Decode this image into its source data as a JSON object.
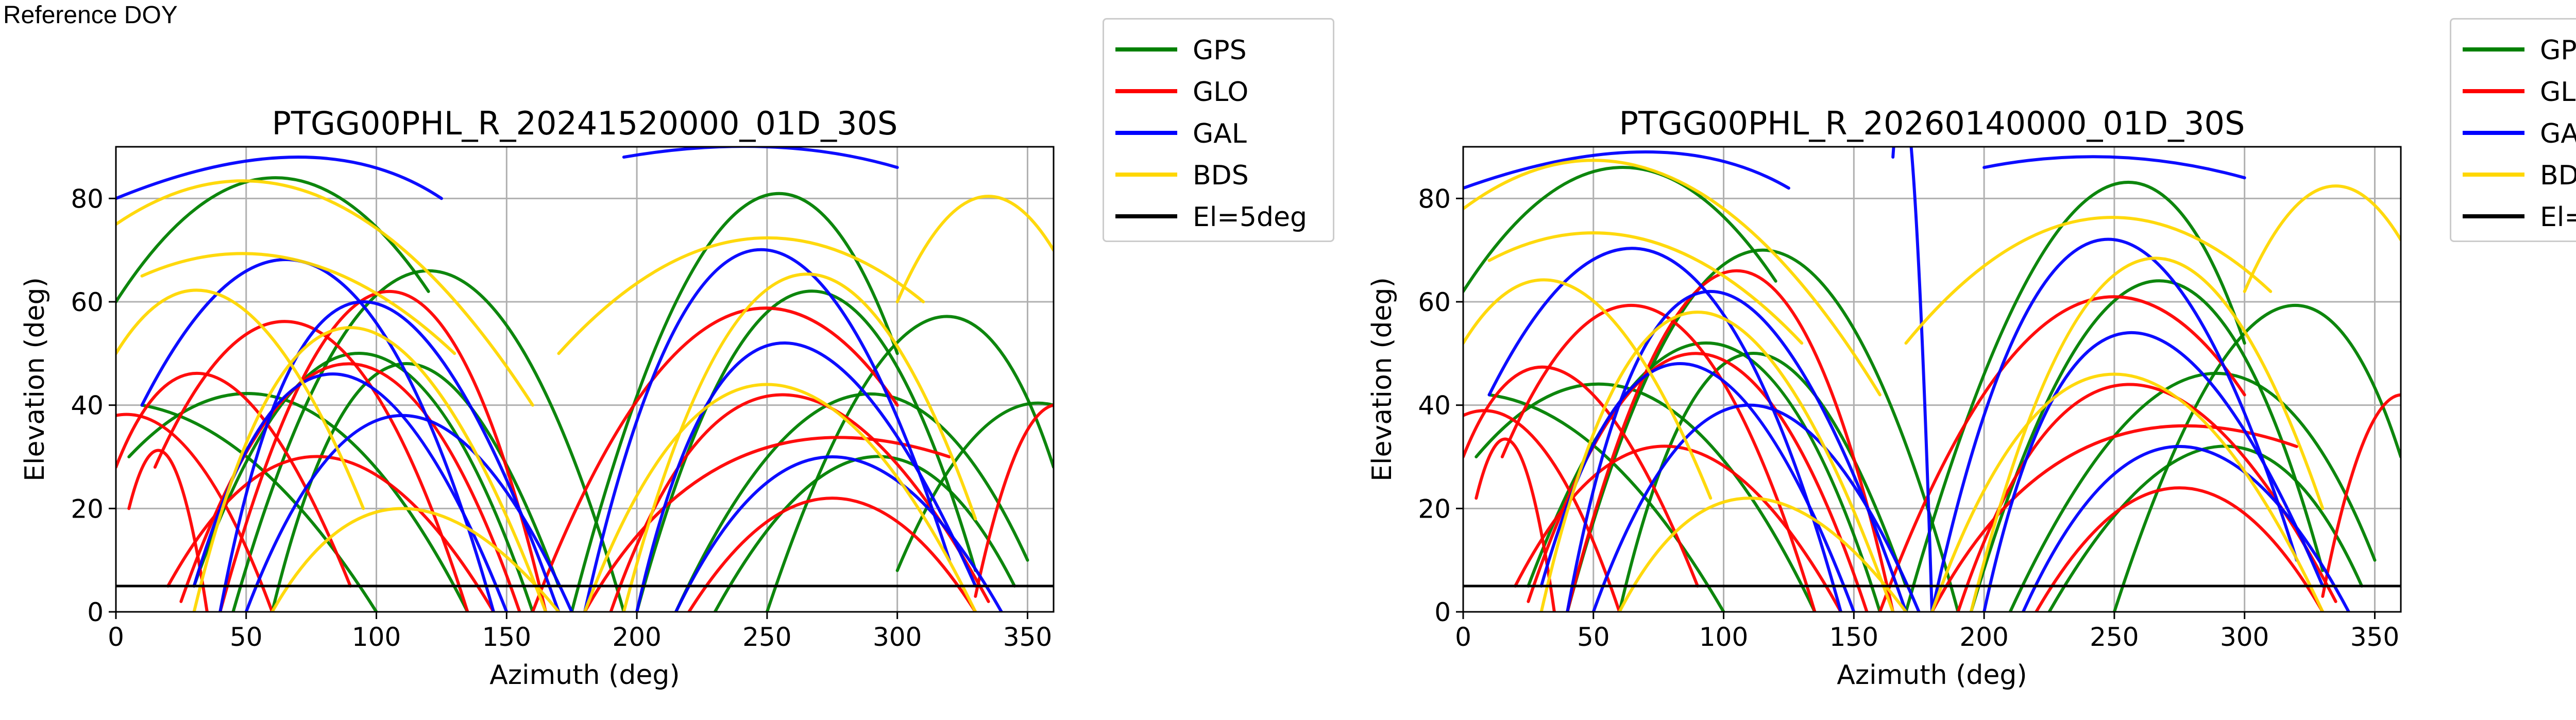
{
  "header": {
    "reference_label": "Reference DOY"
  },
  "legend": [
    {
      "label": "GPS",
      "color": "#008000"
    },
    {
      "label": "GLO",
      "color": "#ff0000"
    },
    {
      "label": "GAL",
      "color": "#0000ff"
    },
    {
      "label": "BDS",
      "color": "#ffd700"
    },
    {
      "label": "El=5deg",
      "color": "#000000"
    }
  ],
  "chart_data": [
    {
      "type": "scatter",
      "title": "PTGG00PHL_R_20241520000_01D_30S",
      "xlabel": "Azimuth (deg)",
      "ylabel": "Elevation (deg)",
      "xlim": [
        0,
        360
      ],
      "ylim": [
        0,
        90
      ],
      "xticks": [
        0,
        50,
        100,
        150,
        200,
        250,
        300,
        350
      ],
      "yticks": [
        0,
        20,
        40,
        60,
        80
      ],
      "grid": true,
      "legend_position": "outside-right",
      "cutoff_line": {
        "label": "El=5deg",
        "y": 5
      },
      "series": [
        {
          "name": "GPS",
          "color": "#008000",
          "arcs": [
            [
              45,
              0,
              120,
              66,
              195,
              0
            ],
            [
              30,
              5,
              95,
              50,
              160,
              0
            ],
            [
              200,
              0,
              265,
              62,
              330,
              8
            ],
            [
              215,
              0,
              285,
              42,
              350,
              10
            ],
            [
              0,
              60,
              60,
              84,
              120,
              62
            ],
            [
              5,
              30,
              70,
              40,
              135,
              0
            ],
            [
              175,
              0,
              240,
              78,
              300,
              50
            ],
            [
              230,
              0,
              290,
              30,
              345,
              5
            ],
            [
              10,
              40,
              55,
              28,
              100,
              0
            ],
            [
              250,
              0,
              310,
              56,
              360,
              28
            ],
            [
              60,
              0,
              110,
              48,
              170,
              5
            ],
            [
              300,
              8,
              330,
              34,
              360,
              40
            ]
          ]
        },
        {
          "name": "GLO",
          "color": "#ff0000",
          "arcs": [
            [
              25,
              2,
              90,
              48,
              155,
              0
            ],
            [
              15,
              28,
              75,
              55,
              135,
              0
            ],
            [
              160,
              0,
              230,
              56,
              300,
              40
            ],
            [
              20,
              5,
              80,
              30,
              145,
              0
            ],
            [
              190,
              0,
              255,
              42,
              335,
              2
            ],
            [
              40,
              0,
              105,
              62,
              165,
              0
            ],
            [
              0,
              28,
              40,
              45,
              90,
              5
            ],
            [
              220,
              0,
              275,
              22,
              330,
              0
            ],
            [
              180,
              0,
              240,
              30,
              320,
              30
            ],
            [
              0,
              38,
              30,
              30,
              60,
              0
            ],
            [
              330,
              3,
              345,
              30,
              360,
              40
            ],
            [
              5,
              20,
              20,
              30,
              35,
              0
            ]
          ]
        },
        {
          "name": "GAL",
          "color": "#0000ff",
          "arcs": [
            [
              40,
              0,
              95,
              60,
              170,
              0
            ],
            [
              200,
              0,
              255,
              52,
              330,
              5
            ],
            [
              10,
              40,
              80,
              66,
              145,
              0
            ],
            [
              180,
              0,
              245,
              70,
              320,
              10
            ],
            [
              50,
              0,
              110,
              38,
              175,
              0
            ],
            [
              215,
              0,
              275,
              30,
              340,
              0
            ],
            [
              0,
              80,
              70,
              88,
              125,
              80
            ],
            [
              195,
              88,
              250,
              90,
              300,
              86
            ],
            [
              30,
              5,
              85,
              46,
              150,
              0
            ]
          ]
        },
        {
          "name": "BDS",
          "color": "#ffd700",
          "arcs": [
            [
              0,
              75,
              80,
              80,
              160,
              40
            ],
            [
              170,
              50,
              240,
              72,
              310,
              60
            ],
            [
              30,
              0,
              90,
              55,
              165,
              0
            ],
            [
              195,
              0,
              260,
              65,
              330,
              18
            ],
            [
              10,
              65,
              70,
              68,
              130,
              50
            ],
            [
              180,
              0,
              250,
              44,
              330,
              0
            ],
            [
              60,
              0,
              110,
              20,
              170,
              0
            ],
            [
              300,
              60,
              330,
              80,
              360,
              70
            ],
            [
              0,
              50,
              45,
              60,
              95,
              20
            ]
          ]
        }
      ]
    },
    {
      "type": "scatter",
      "title": "PTGG00PHL_R_20260140000_01D_30S",
      "xlabel": "Azimuth (deg)",
      "ylabel": "Elevation (deg)",
      "xlim": [
        0,
        360
      ],
      "ylim": [
        0,
        90
      ],
      "xticks": [
        0,
        50,
        100,
        150,
        200,
        250,
        300,
        350
      ],
      "yticks": [
        0,
        20,
        40,
        60,
        80
      ],
      "grid": true,
      "legend_position": "outside-right",
      "cutoff_line": {
        "label": "El=5deg",
        "y": 5
      },
      "series": [
        {
          "name": "GPS",
          "color": "#008000",
          "arcs": [
            [
              40,
              0,
              115,
              70,
              190,
              0
            ],
            [
              25,
              5,
              95,
              52,
              160,
              0
            ],
            [
              195,
              0,
              265,
              64,
              330,
              8
            ],
            [
              210,
              0,
              285,
              46,
              350,
              10
            ],
            [
              0,
              62,
              60,
              86,
              120,
              64
            ],
            [
              5,
              30,
              70,
              42,
              135,
              0
            ],
            [
              170,
              0,
              240,
              80,
              300,
              52
            ],
            [
              225,
              0,
              290,
              32,
              345,
              5
            ],
            [
              10,
              42,
              55,
              30,
              100,
              0
            ],
            [
              250,
              0,
              310,
              58,
              360,
              30
            ],
            [
              60,
              0,
              110,
              50,
              170,
              5
            ]
          ]
        },
        {
          "name": "GLO",
          "color": "#ff0000",
          "arcs": [
            [
              25,
              2,
              90,
              50,
              155,
              0
            ],
            [
              15,
              30,
              75,
              58,
              135,
              0
            ],
            [
              160,
              0,
              230,
              58,
              300,
              42
            ],
            [
              20,
              5,
              80,
              32,
              145,
              0
            ],
            [
              190,
              0,
              255,
              44,
              335,
              2
            ],
            [
              40,
              0,
              105,
              66,
              165,
              0
            ],
            [
              0,
              30,
              40,
              46,
              90,
              5
            ],
            [
              220,
              0,
              275,
              24,
              330,
              0
            ],
            [
              180,
              0,
              240,
              32,
              320,
              32
            ],
            [
              0,
              38,
              30,
              32,
              60,
              0
            ],
            [
              330,
              3,
              345,
              32,
              360,
              42
            ],
            [
              5,
              22,
              20,
              32,
              35,
              0
            ]
          ]
        },
        {
          "name": "GAL",
          "color": "#0000ff",
          "arcs": [
            [
              40,
              0,
              95,
              62,
              170,
              0
            ],
            [
              200,
              0,
              255,
              54,
              330,
              5
            ],
            [
              10,
              42,
              80,
              68,
              145,
              0
            ],
            [
              180,
              0,
              245,
              72,
              320,
              10
            ],
            [
              50,
              0,
              110,
              40,
              175,
              0
            ],
            [
              215,
              0,
              275,
              32,
              340,
              0
            ],
            [
              0,
              82,
              70,
              89,
              125,
              82
            ],
            [
              165,
              88,
              172,
              90,
              180,
              0
            ],
            [
              200,
              86,
              250,
              88,
              300,
              84
            ],
            [
              30,
              5,
              85,
              48,
              150,
              0
            ]
          ]
        },
        {
          "name": "BDS",
          "color": "#ffd700",
          "arcs": [
            [
              0,
              78,
              80,
              84,
              160,
              42
            ],
            [
              170,
              52,
              240,
              76,
              310,
              62
            ],
            [
              30,
              0,
              90,
              58,
              165,
              0
            ],
            [
              195,
              0,
              260,
              68,
              330,
              20
            ],
            [
              10,
              68,
              70,
              72,
              130,
              52
            ],
            [
              180,
              0,
              250,
              46,
              330,
              0
            ],
            [
              60,
              0,
              110,
              22,
              170,
              0
            ],
            [
              300,
              62,
              330,
              82,
              360,
              72
            ],
            [
              0,
              52,
              45,
              62,
              95,
              22
            ]
          ]
        }
      ]
    }
  ]
}
